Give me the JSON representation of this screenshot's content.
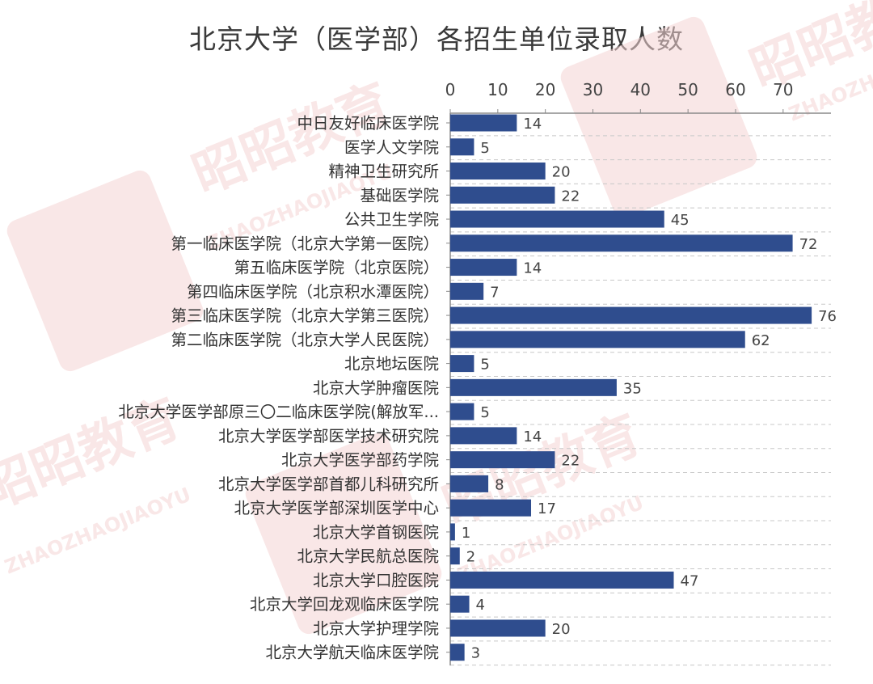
{
  "colors": {
    "bar": "#2f4d8e",
    "axis": "#8a8a8a",
    "grid": "#c8c8c8",
    "watermark": "#f4d3d3"
  },
  "watermark": {
    "brand": "昭昭教育",
    "latin": "ZHAOZHAOJIAOYU"
  },
  "chart_data": {
    "type": "bar",
    "orientation": "horizontal",
    "title": "北京大学（医学部）各招生单位录取人数",
    "xlabel": "",
    "ylabel": "",
    "xlim": [
      0,
      80
    ],
    "xticks": [
      0,
      10,
      20,
      30,
      40,
      50,
      60,
      70
    ],
    "x_axis_position": "top",
    "grid": "dashed horizontal",
    "categories": [
      "中日友好临床医学院",
      "医学人文学院",
      "精神卫生研究所",
      "基础医学院",
      "公共卫生学院",
      "第一临床医学院（北京大学第一医院）",
      "第五临床医学院（北京医院）",
      "第四临床医学院（北京积水潭医院）",
      "第三临床医学院（北京大学第三医院）",
      "第二临床医学院（北京大学人民医院）",
      "北京地坛医院",
      "北京大学肿瘤医院",
      "北京大学医学部原三〇二临床医学院(解放军...",
      "北京大学医学部医学技术研究院",
      "北京大学医学部药学院",
      "北京大学医学部首都儿科研究所",
      "北京大学医学部深圳医学中心",
      "北京大学首钢医院",
      "北京大学民航总医院",
      "北京大学口腔医院",
      "北京大学回龙观临床医学院",
      "北京大学护理学院",
      "北京大学航天临床医学院"
    ],
    "values": [
      14,
      5,
      20,
      22,
      45,
      72,
      14,
      7,
      76,
      62,
      5,
      35,
      5,
      14,
      22,
      8,
      17,
      1,
      2,
      47,
      4,
      20,
      3
    ]
  }
}
